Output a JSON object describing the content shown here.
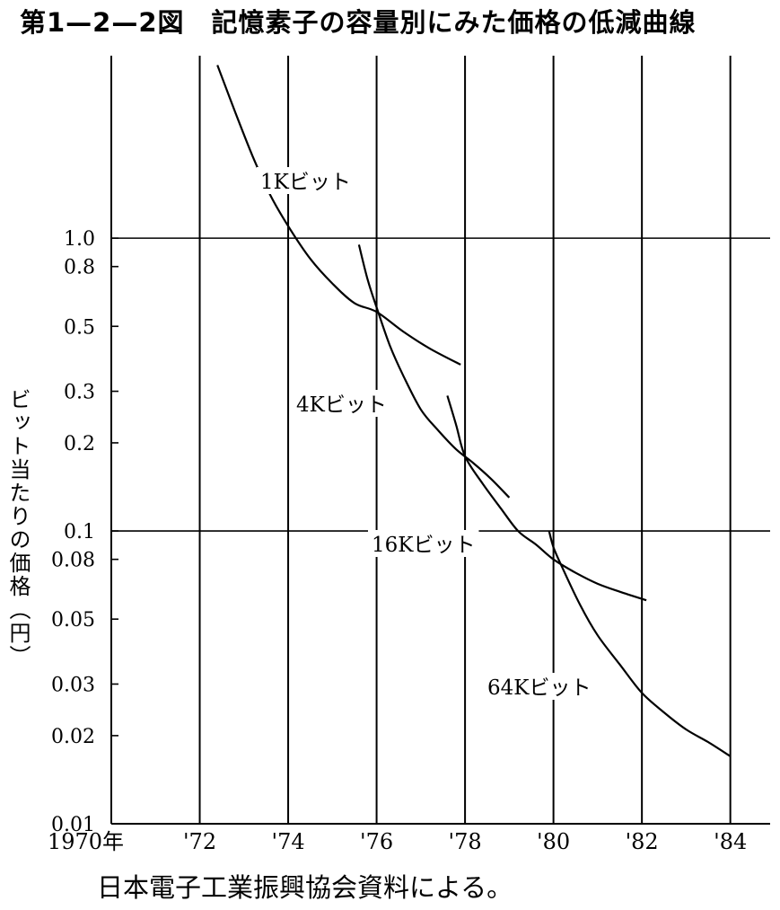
{
  "title": "第1—2—2図　記憶素子の容量別にみた価格の低減曲線",
  "source": "日本電子工業振興協会資料による。",
  "chart_data": {
    "type": "line",
    "ylabel": "ビット当たりの価格（円）",
    "xlabel": "",
    "x_tick_labels": [
      "1970年",
      "'72",
      "'74",
      "'76",
      "'78",
      "'80",
      "'82",
      "'84"
    ],
    "x_ticks": [
      1970,
      1972,
      1974,
      1976,
      1978,
      1980,
      1982,
      1984
    ],
    "xlim": [
      1970,
      1984.9
    ],
    "y_scale": "log",
    "ylim": [
      0.01,
      4.2
    ],
    "y_ticks": [
      1.0,
      0.8,
      0.5,
      0.3,
      0.2,
      0.1,
      0.08,
      0.05,
      0.03,
      0.02,
      0.01
    ],
    "y_tick_labels": [
      "1.0",
      "0.8",
      "0.5",
      "0.3",
      "0.2",
      "0.1",
      "0.08",
      "0.05",
      "0.03",
      "0.02",
      "0.01"
    ],
    "gridlines_y": [
      1.0,
      0.1
    ],
    "grid_x": true,
    "series": [
      {
        "name": "1Kビット",
        "x": [
          1972.4,
          1972.8,
          1973.2,
          1973.6,
          1974.0,
          1974.5,
          1975.0,
          1975.5,
          1976.0,
          1976.6,
          1977.2,
          1977.9
        ],
        "y": [
          3.9,
          2.7,
          1.9,
          1.4,
          1.1,
          0.85,
          0.7,
          0.6,
          0.56,
          0.48,
          0.42,
          0.37
        ]
      },
      {
        "name": "4Kビット",
        "x": [
          1975.6,
          1975.8,
          1976.0,
          1976.3,
          1976.6,
          1977.0,
          1977.4,
          1977.8,
          1978.2,
          1978.6,
          1979.0
        ],
        "y": [
          0.95,
          0.72,
          0.58,
          0.43,
          0.34,
          0.26,
          0.22,
          0.19,
          0.17,
          0.15,
          0.13
        ]
      },
      {
        "name": "16Kビット",
        "x": [
          1977.6,
          1977.8,
          1978.0,
          1978.4,
          1978.8,
          1979.2,
          1979.6,
          1980.0,
          1980.5,
          1981.0,
          1981.5,
          1982.1
        ],
        "y": [
          0.29,
          0.23,
          0.18,
          0.145,
          0.12,
          0.1,
          0.09,
          0.08,
          0.072,
          0.066,
          0.062,
          0.058
        ]
      },
      {
        "name": "64Kビット",
        "x": [
          1979.9,
          1980.0,
          1980.2,
          1980.6,
          1981.0,
          1981.5,
          1982.0,
          1982.5,
          1983.0,
          1983.5,
          1984.0
        ],
        "y": [
          0.1,
          0.088,
          0.075,
          0.056,
          0.044,
          0.035,
          0.028,
          0.024,
          0.021,
          0.019,
          0.017
        ]
      }
    ]
  }
}
